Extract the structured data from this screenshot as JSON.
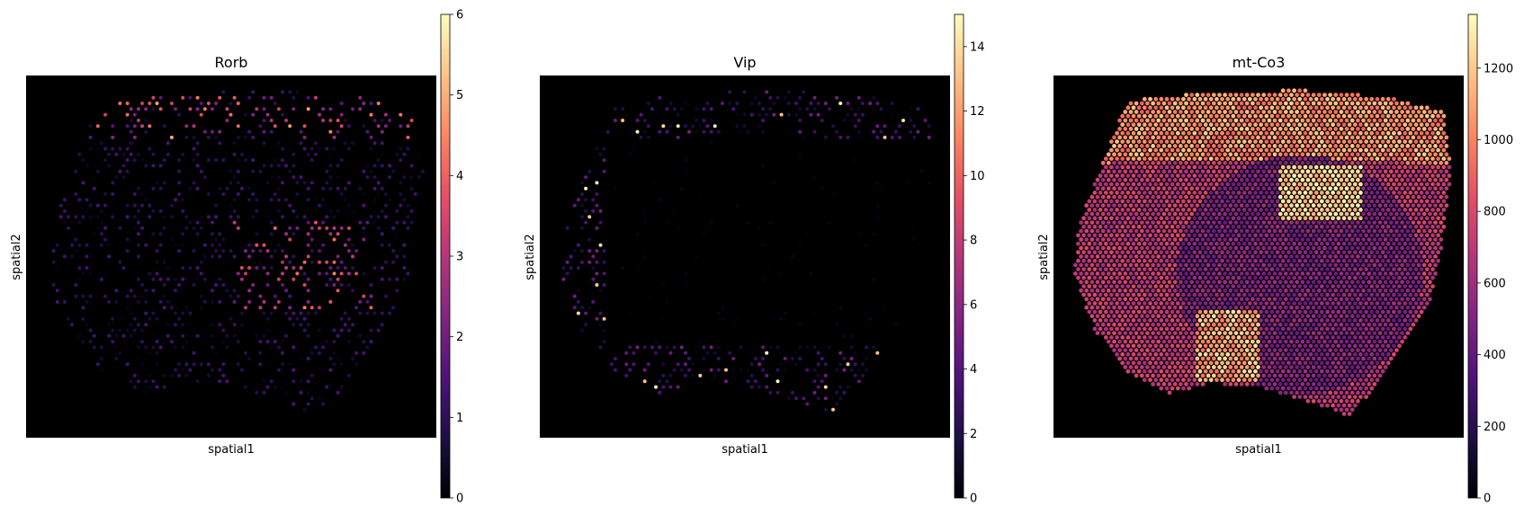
{
  "chart_data": [
    {
      "type": "scatter",
      "title": "Rorb",
      "xlabel": "spatial1",
      "ylabel": "spatial2",
      "colormap": "magma",
      "colorbar": {
        "min": 0,
        "max": 6,
        "ticks": [
          0,
          1,
          2,
          3,
          4,
          5,
          6
        ]
      }
    },
    {
      "type": "scatter",
      "title": "Vip",
      "xlabel": "spatial1",
      "ylabel": "spatial2",
      "colormap": "magma",
      "colorbar": {
        "min": 0,
        "max": 15,
        "ticks": [
          0,
          2,
          4,
          6,
          8,
          10,
          12,
          14
        ]
      }
    },
    {
      "type": "scatter",
      "title": "mt-Co3",
      "xlabel": "spatial1",
      "ylabel": "spatial2",
      "colormap": "magma",
      "colorbar": {
        "min": 0,
        "max": 1350,
        "ticks": [
          0,
          200,
          400,
          600,
          800,
          1000,
          1200
        ]
      }
    }
  ],
  "colors": {
    "background": "#000000",
    "magma_stops": [
      "#000004",
      "#1c1044",
      "#4f127b",
      "#812581",
      "#b5367a",
      "#e55064",
      "#fb8761",
      "#fec287",
      "#fcfdbf"
    ]
  }
}
